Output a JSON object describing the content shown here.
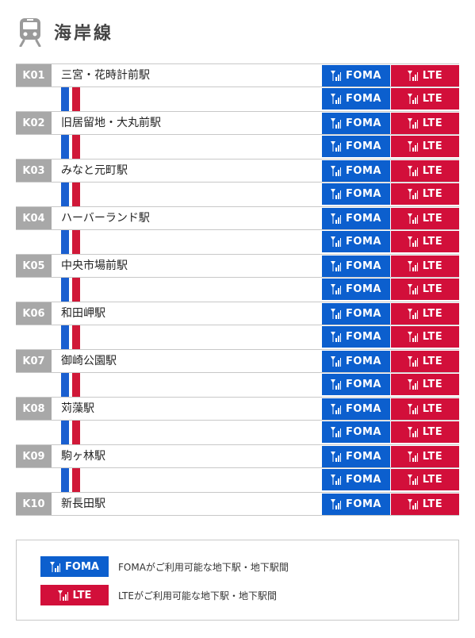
{
  "header": {
    "title": "海岸線",
    "icon": "train-icon"
  },
  "badges": {
    "foma_label": "FOMA",
    "lte_label": "LTE",
    "foma_color": "#0c5fce",
    "lte_color": "#d20f3a"
  },
  "stations": [
    {
      "code": "K01",
      "name": "三宮・花時計前駅"
    },
    {
      "code": "K02",
      "name": "旧居留地・大丸前駅"
    },
    {
      "code": "K03",
      "name": "みなと元町駅"
    },
    {
      "code": "K04",
      "name": "ハーバーランド駅"
    },
    {
      "code": "K05",
      "name": "中央市場前駅"
    },
    {
      "code": "K06",
      "name": "和田岬駅"
    },
    {
      "code": "K07",
      "name": "御崎公園駅"
    },
    {
      "code": "K08",
      "name": "苅藻駅"
    },
    {
      "code": "K09",
      "name": "駒ヶ林駅"
    },
    {
      "code": "K10",
      "name": "新長田駅"
    }
  ],
  "legend": {
    "foma_text": "FOMAがご利用可能な地下駅・地下駅間",
    "lte_text": "LTEがご利用可能な地下駅・地下駅間"
  }
}
